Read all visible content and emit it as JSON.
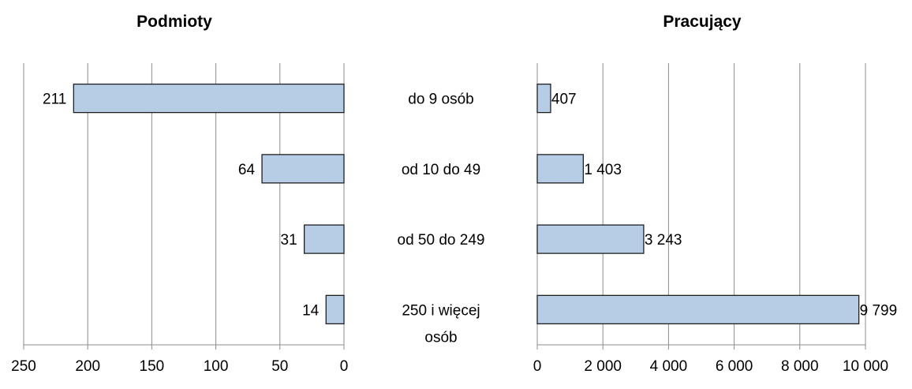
{
  "chart_data": [
    {
      "type": "bar",
      "orientation": "horizontal",
      "direction": "reversed",
      "title": "Podmioty",
      "categories": [
        "do 9 osób",
        "od 10 do 49",
        "od 50 do 249",
        "250 i więcej osób"
      ],
      "values": [
        211,
        64,
        31,
        14
      ],
      "value_labels": [
        "211",
        "64",
        "31",
        "14"
      ],
      "xlim": [
        0,
        250
      ],
      "ticks": [
        0,
        50,
        100,
        150,
        200,
        250
      ],
      "tick_labels": [
        "0",
        "50",
        "100",
        "150",
        "200",
        "250"
      ],
      "grid": true,
      "bar_color": "#b7cde6",
      "bar_border": "#1f1f1f"
    },
    {
      "type": "bar",
      "orientation": "horizontal",
      "direction": "normal",
      "title": "Pracujący",
      "categories": [
        "do 9 osób",
        "od 10 do 49",
        "od 50 do 249",
        "250 i więcej osób"
      ],
      "values": [
        407,
        1403,
        3243,
        9799
      ],
      "value_labels": [
        "407",
        "1 403",
        "3 243",
        "9 799"
      ],
      "xlim": [
        0,
        10000
      ],
      "ticks": [
        0,
        2000,
        4000,
        6000,
        8000,
        10000
      ],
      "tick_labels": [
        "0",
        "2 000",
        "4 000",
        "6 000",
        "8 000",
        "10 000"
      ],
      "grid": true,
      "bar_color": "#b7cde6",
      "bar_border": "#1f1f1f"
    }
  ],
  "category_labels": [
    [
      "do 9 osób"
    ],
    [
      "od 10 do 49"
    ],
    [
      "od 50 do 249"
    ],
    [
      "250 i więcej",
      "osób"
    ]
  ]
}
